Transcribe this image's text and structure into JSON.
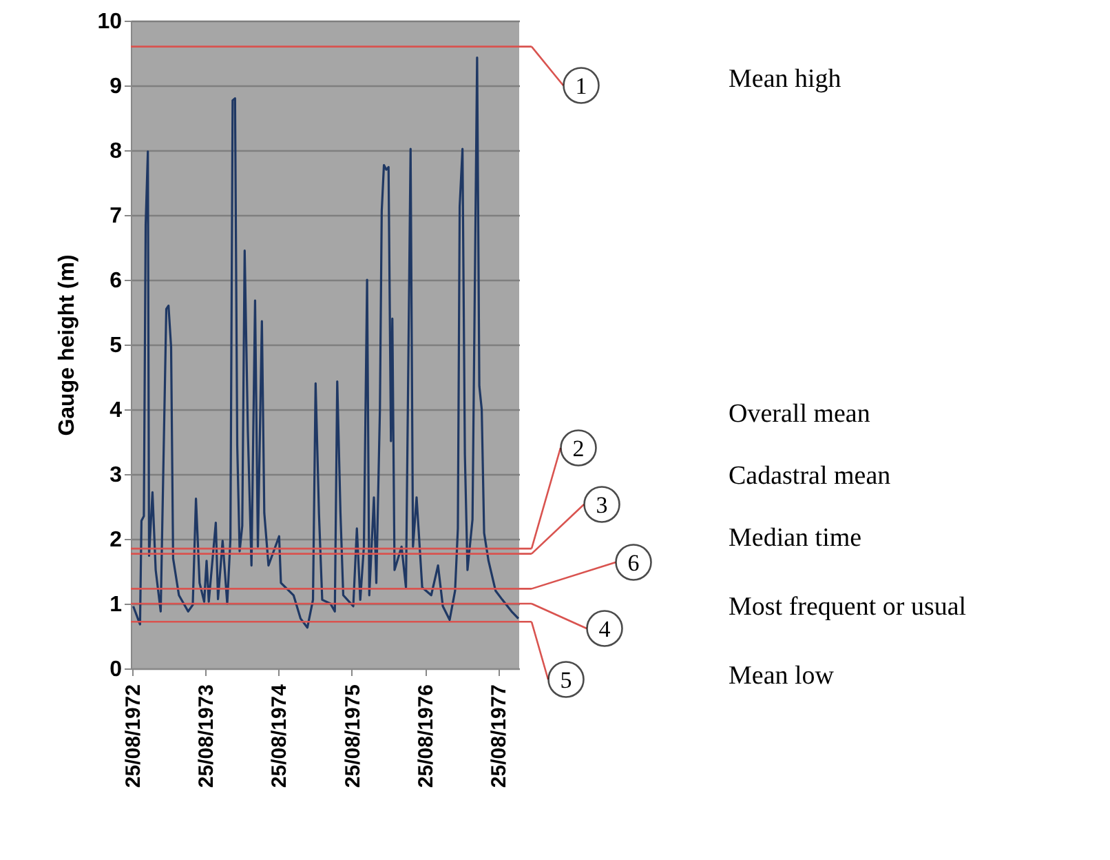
{
  "chart_data": {
    "type": "line",
    "ylabel": "Gauge height (m)",
    "xlim": [
      "1972-08-18",
      "1977-12-08"
    ],
    "xticks": [
      {
        "value": "1972-08-25",
        "label": "25/08/1972"
      },
      {
        "value": "1973-08-25",
        "label": "25/08/1973"
      },
      {
        "value": "1974-08-25",
        "label": "25/08/1974"
      },
      {
        "value": "1975-08-25",
        "label": "25/08/1975"
      },
      {
        "value": "1976-08-25",
        "label": "25/08/1976"
      },
      {
        "value": "1977-08-25",
        "label": "25/08/1977"
      }
    ],
    "ylim": [
      0,
      10
    ],
    "yticks": [
      0,
      1,
      2,
      3,
      4,
      5,
      6,
      7,
      8,
      9,
      10
    ],
    "grid": "y",
    "marker": "none",
    "line_style": "solid",
    "x": [
      "1972-08-30",
      "1972-10-03",
      "1972-10-10",
      "1972-10-22",
      "1972-10-31",
      "1972-11-11",
      "1972-11-17",
      "1972-12-04",
      "1972-12-20",
      "1973-01-14",
      "1973-02-11",
      "1973-02-22",
      "1973-03-07",
      "1973-03-17",
      "1973-04-15",
      "1973-05-31",
      "1973-06-23",
      "1973-07-09",
      "1973-07-27",
      "1973-08-19",
      "1973-08-31",
      "1973-09-11",
      "1973-10-16",
      "1973-10-27",
      "1973-11-19",
      "1973-12-12",
      "1973-12-28",
      "1974-01-08",
      "1974-01-20",
      "1974-01-31",
      "1974-02-12",
      "1974-02-25",
      "1974-03-09",
      "1974-03-25",
      "1974-04-12",
      "1974-04-30",
      "1974-05-14",
      "1974-06-03",
      "1974-06-15",
      "1974-07-06",
      "1974-08-28",
      "1974-09-06",
      "1974-11-08",
      "1974-12-13",
      "1975-01-16",
      "1975-02-13",
      "1975-02-26",
      "1975-03-15",
      "1975-03-31",
      "1975-05-11",
      "1975-06-02",
      "1975-06-14",
      "1975-06-30",
      "1975-07-14",
      "1975-09-02",
      "1975-09-20",
      "1975-10-07",
      "1975-10-25",
      "1975-11-10",
      "1975-11-21",
      "1975-12-14",
      "1975-12-26",
      "1976-01-13",
      "1976-01-22",
      "1976-02-02",
      "1976-02-14",
      "1976-02-25",
      "1976-03-08",
      "1976-03-15",
      "1976-03-26",
      "1976-04-30",
      "1976-05-22",
      "1976-06-14",
      "1976-06-26",
      "1976-07-14",
      "1976-08-11",
      "1976-09-25",
      "1976-10-29",
      "1976-11-22",
      "1976-12-26",
      "1977-01-22",
      "1977-02-05",
      "1977-02-14",
      "1977-02-28",
      "1977-03-12",
      "1977-03-25",
      "1977-04-19",
      "1977-05-12",
      "1977-05-23",
      "1977-06-04",
      "1977-06-16",
      "1977-07-08",
      "1977-08-12",
      "1977-09-15",
      "1977-10-31",
      "1977-12-04"
    ],
    "series": [
      {
        "color": "#1f3864",
        "values": [
          0.96,
          0.68,
          2.28,
          2.35,
          6.85,
          7.98,
          1.74,
          2.72,
          1.52,
          0.88,
          5.55,
          5.6,
          4.96,
          1.7,
          1.13,
          0.88,
          0.98,
          2.62,
          1.32,
          1.03,
          1.66,
          1.03,
          2.25,
          1.07,
          1.97,
          1.0,
          2.0,
          8.77,
          8.8,
          3.45,
          1.81,
          2.2,
          6.45,
          3.66,
          1.59,
          5.68,
          1.88,
          5.36,
          2.4,
          1.59,
          2.04,
          1.32,
          1.13,
          0.77,
          0.63,
          1.06,
          4.4,
          2.38,
          1.06,
          1.0,
          0.88,
          4.43,
          2.41,
          1.13,
          0.96,
          2.16,
          1.06,
          1.88,
          6.0,
          1.13,
          2.64,
          1.32,
          4.0,
          7.06,
          7.77,
          7.7,
          7.74,
          3.51,
          5.4,
          1.52,
          1.88,
          1.25,
          8.02,
          1.88,
          2.64,
          1.25,
          1.13,
          1.59,
          0.96,
          0.75,
          1.2,
          2.16,
          7.13,
          8.02,
          3.3,
          1.52,
          2.3,
          9.43,
          4.36,
          4.0,
          2.09,
          1.66,
          1.2,
          1.06,
          0.88,
          0.77
        ]
      }
    ],
    "ref_lines": [
      {
        "axis": "y",
        "value": 9.6,
        "color": "#d9534f"
      },
      {
        "axis": "y",
        "value": 1.85,
        "color": "#d9534f"
      },
      {
        "axis": "y",
        "value": 1.77,
        "color": "#d9534f"
      },
      {
        "axis": "y",
        "value": 1.23,
        "color": "#d9534f"
      },
      {
        "axis": "y",
        "value": 1.0,
        "color": "#d9534f"
      },
      {
        "axis": "y",
        "value": 0.72,
        "color": "#d9534f"
      }
    ],
    "annotations": [
      "1",
      "2",
      "3",
      "6",
      "4",
      "5",
      "Mean high",
      "Overall mean",
      "Cadastral mean",
      "Median time",
      "Most frequent or usual",
      "Mean low"
    ]
  }
}
